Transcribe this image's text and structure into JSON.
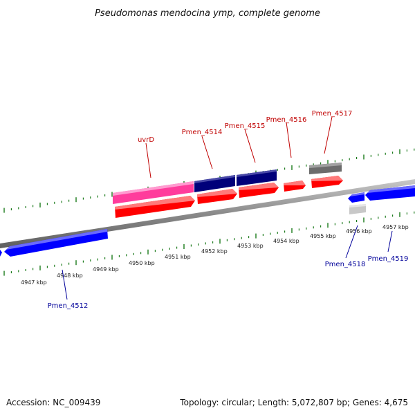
{
  "title": "Pseudomonas mendocina ymp, complete genome",
  "footer": {
    "accession": "Accession: NC_009439",
    "summary": "Topology: circular; Length: 5,072,807 bp; Genes: 4,675"
  },
  "colors": {
    "backbone": "#8a8a8a",
    "tick": "#1a7a1a",
    "forward_gene": "#ff0000",
    "reverse_gene": "#0000ff",
    "uvrD_gene": "#ff2a90",
    "navy_gene": "#00007a",
    "gray_gene": "#707070",
    "light_gray_gene": "#c8c8c8",
    "top_label": "#c00000",
    "bottom_label": "#00009a"
  },
  "ticks": [
    {
      "label": "4947 kbp"
    },
    {
      "label": "4948 kbp"
    },
    {
      "label": "4949 kbp"
    },
    {
      "label": "4950 kbp"
    },
    {
      "label": "4951 kbp"
    },
    {
      "label": "4952 kbp"
    },
    {
      "label": "4953 kbp"
    },
    {
      "label": "4954 kbp"
    },
    {
      "label": "4955 kbp"
    },
    {
      "label": "4956 kbp"
    },
    {
      "label": "4957 kbp"
    }
  ],
  "genes": {
    "top_labels": [
      "uvrD",
      "Pmen_4514",
      "Pmen_4515",
      "Pmen_4516",
      "Pmen_4517"
    ],
    "bottom_labels": [
      "Pmen_4512",
      "Pmen_4518",
      "Pmen_4519"
    ]
  }
}
